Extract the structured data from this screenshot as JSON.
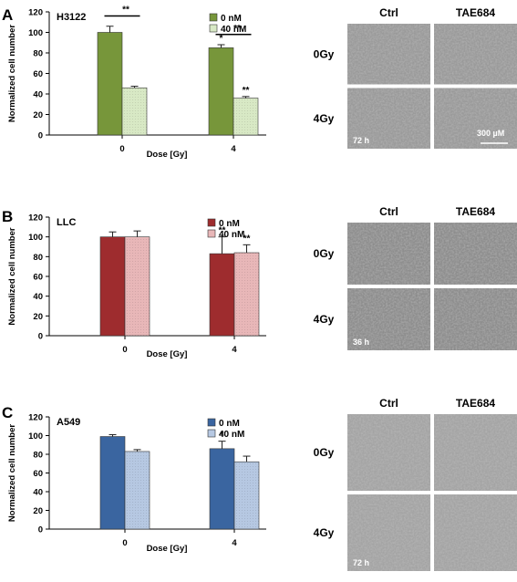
{
  "figure": {
    "panels": [
      {
        "letter": "A",
        "chart_data": {
          "type": "bar",
          "title": "H3122",
          "xlabel": "Dose [Gy]",
          "ylabel": "Normalized cell number",
          "categories": [
            "0",
            "4"
          ],
          "ylim": [
            0,
            120
          ],
          "yticks": [
            0,
            20,
            40,
            60,
            80,
            100,
            120
          ],
          "series": [
            {
              "name": "0 nM",
              "values": [
                100,
                85
              ],
              "errors": [
                6,
                3
              ],
              "color": "#77963a"
            },
            {
              "name": "40 nM",
              "values": [
                46,
                36
              ],
              "errors": [
                1.5,
                1.5
              ],
              "color": "#d8e9c5"
            }
          ],
          "bar_marks": [
            [
              "",
              "*"
            ],
            [
              "",
              "**"
            ]
          ],
          "brackets": [
            {
              "category": 0,
              "label": "**"
            },
            {
              "category": 1,
              "label": "**"
            }
          ]
        },
        "micrographs": {
          "columns": [
            "Ctrl",
            "TAE684"
          ],
          "rows": [
            "0Gy",
            "4Gy"
          ],
          "time_label": "72 h",
          "scale_label": "300 µM",
          "tint": "#9a9a9a"
        }
      },
      {
        "letter": "B",
        "chart_data": {
          "type": "bar",
          "title": "LLC",
          "xlabel": "Dose [Gy]",
          "ylabel": "Normalized cell number",
          "categories": [
            "0",
            "4"
          ],
          "ylim": [
            0,
            120
          ],
          "yticks": [
            0,
            20,
            40,
            60,
            80,
            100,
            120
          ],
          "series": [
            {
              "name": "0 nM",
              "values": [
                100,
                83
              ],
              "errors": [
                5,
                17
              ],
              "color": "#9e2c2e"
            },
            {
              "name": "40 nM",
              "values": [
                100,
                84
              ],
              "errors": [
                6,
                8
              ],
              "color": "#e8b7b8"
            }
          ],
          "bar_marks": [
            [
              "",
              "**"
            ],
            [
              "",
              "**"
            ]
          ],
          "brackets": []
        },
        "micrographs": {
          "columns": [
            "Ctrl",
            "TAE684"
          ],
          "rows": [
            "0Gy",
            "4Gy"
          ],
          "time_label": "36 h",
          "scale_label": "",
          "tint": "#8d8d8d"
        }
      },
      {
        "letter": "C",
        "chart_data": {
          "type": "bar",
          "title": "A549",
          "xlabel": "Dose [Gy]",
          "ylabel": "Normalized cell number",
          "categories": [
            "0",
            "4"
          ],
          "ylim": [
            0,
            120
          ],
          "yticks": [
            0,
            20,
            40,
            60,
            80,
            100,
            120
          ],
          "series": [
            {
              "name": "0 nM",
              "values": [
                99,
                86
              ],
              "errors": [
                2,
                8
              ],
              "color": "#3a65a0"
            },
            {
              "name": "40  nM",
              "values": [
                83,
                72
              ],
              "errors": [
                2,
                6
              ],
              "color": "#b6c8e2"
            }
          ],
          "bar_marks": [
            [
              "",
              "*"
            ],
            [
              "",
              ""
            ]
          ],
          "brackets": []
        },
        "micrographs": {
          "columns": [
            "Ctrl",
            "TAE684"
          ],
          "rows": [
            "0Gy",
            "4Gy"
          ],
          "time_label": "72 h",
          "scale_label": "",
          "tint": "#a4a4a4"
        }
      }
    ]
  }
}
